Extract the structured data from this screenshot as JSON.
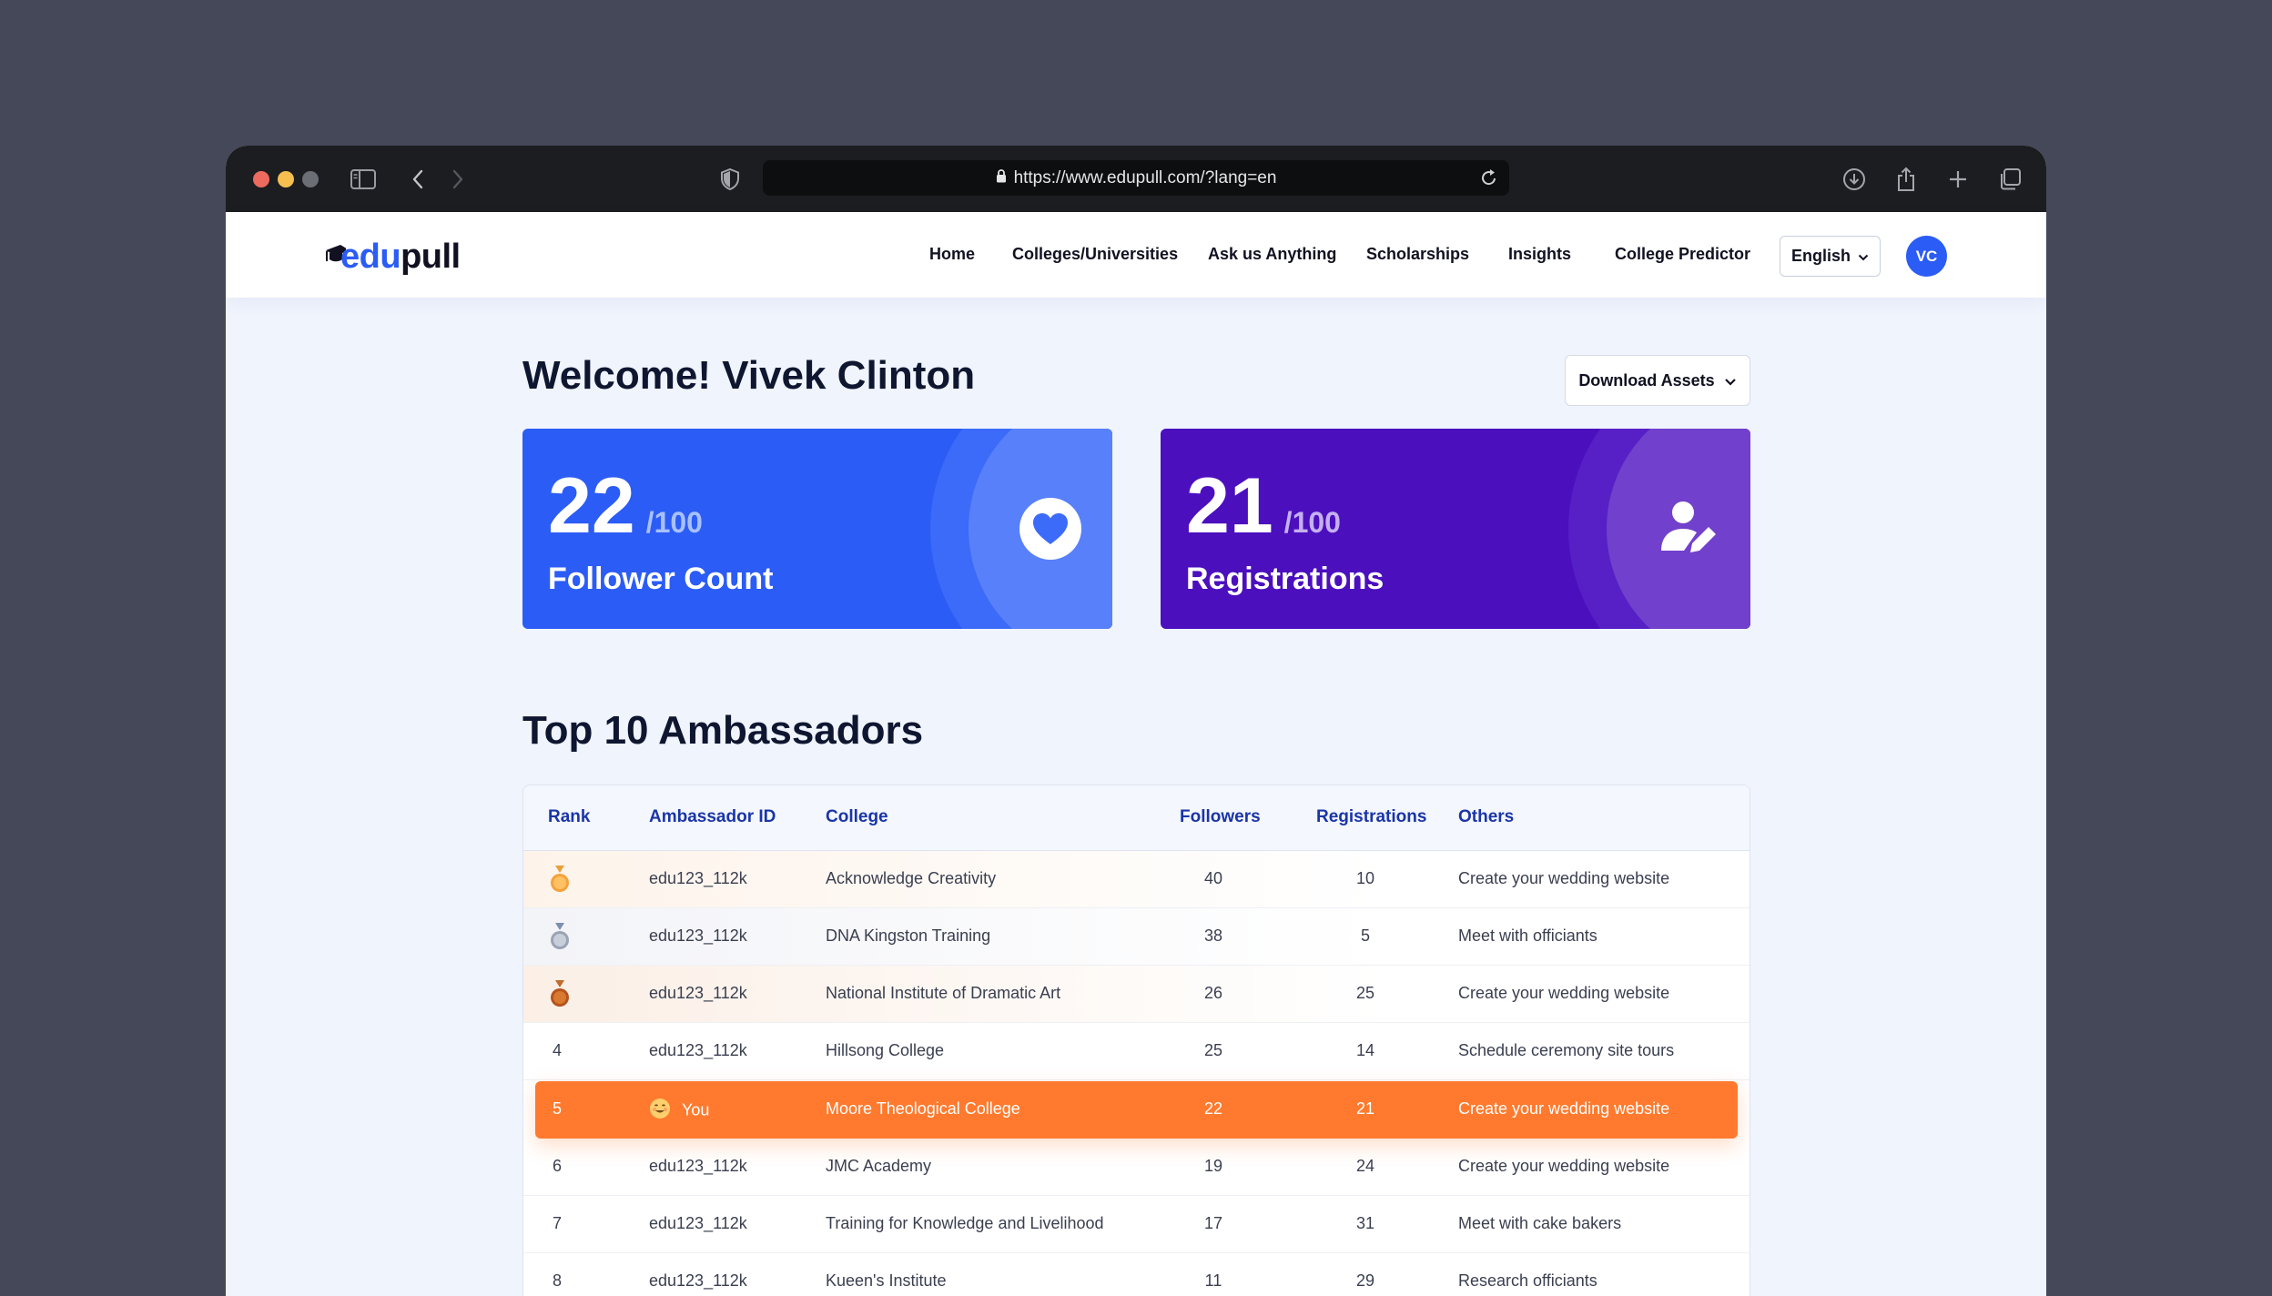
{
  "browser": {
    "url": "https://www.edupull.com/?lang=en"
  },
  "header": {
    "logo_part1": "edu",
    "logo_part2": "pull",
    "nav": [
      {
        "label": "Home"
      },
      {
        "label": "Colleges/Universities"
      },
      {
        "label": "Ask us Anything"
      },
      {
        "label": "Scholarships"
      },
      {
        "label": "Insights"
      },
      {
        "label": "College Predictor"
      }
    ],
    "language": "English",
    "avatar_initials": "VC"
  },
  "main": {
    "welcome": "Welcome! Vivek Clinton",
    "download_label": "Download Assets",
    "cards": [
      {
        "value": "22",
        "total": "/100",
        "label": "Follower Count",
        "icon": "heart-icon",
        "color": "#2b5cf5"
      },
      {
        "value": "21",
        "total": "/100",
        "label": "Registrations",
        "icon": "user-edit-icon",
        "color": "#4b0fbe"
      }
    ],
    "leaderboard_title": "Top 10 Ambassadors",
    "table": {
      "headers": [
        "Rank",
        "Ambassador ID",
        "College",
        "Followers",
        "Registrations",
        "Others"
      ],
      "rows": [
        {
          "rank": "1",
          "id": "edu123_112k",
          "college": "Acknowledge Creativity",
          "followers": "40",
          "registrations": "10",
          "others": "Create your wedding website"
        },
        {
          "rank": "2",
          "id": "edu123_112k",
          "college": "DNA Kingston Training",
          "followers": "38",
          "registrations": "5",
          "others": "Meet with officiants"
        },
        {
          "rank": "3",
          "id": "edu123_112k",
          "college": "National Institute of Dramatic Art",
          "followers": "26",
          "registrations": "25",
          "others": "Create your wedding website"
        },
        {
          "rank": "4",
          "id": "edu123_112k",
          "college": "Hillsong College",
          "followers": "25",
          "registrations": "14",
          "others": "Schedule ceremony site tours"
        },
        {
          "rank": "5",
          "id": "You",
          "college": "Moore Theological College",
          "followers": "22",
          "registrations": "21",
          "others": "Create your wedding website"
        },
        {
          "rank": "6",
          "id": "edu123_112k",
          "college": "JMC Academy",
          "followers": "19",
          "registrations": "24",
          "others": "Create your wedding website"
        },
        {
          "rank": "7",
          "id": "edu123_112k",
          "college": "Training for Knowledge and Livelihood",
          "followers": "17",
          "registrations": "31",
          "others": "Meet with cake bakers"
        },
        {
          "rank": "8",
          "id": "edu123_112k",
          "college": "Kueen's Institute",
          "followers": "11",
          "registrations": "29",
          "others": "Research officiants"
        }
      ]
    }
  },
  "colors": {
    "accent": "#2b5cf5",
    "purple": "#4b0fbe",
    "highlight": "#ff7a2e"
  }
}
